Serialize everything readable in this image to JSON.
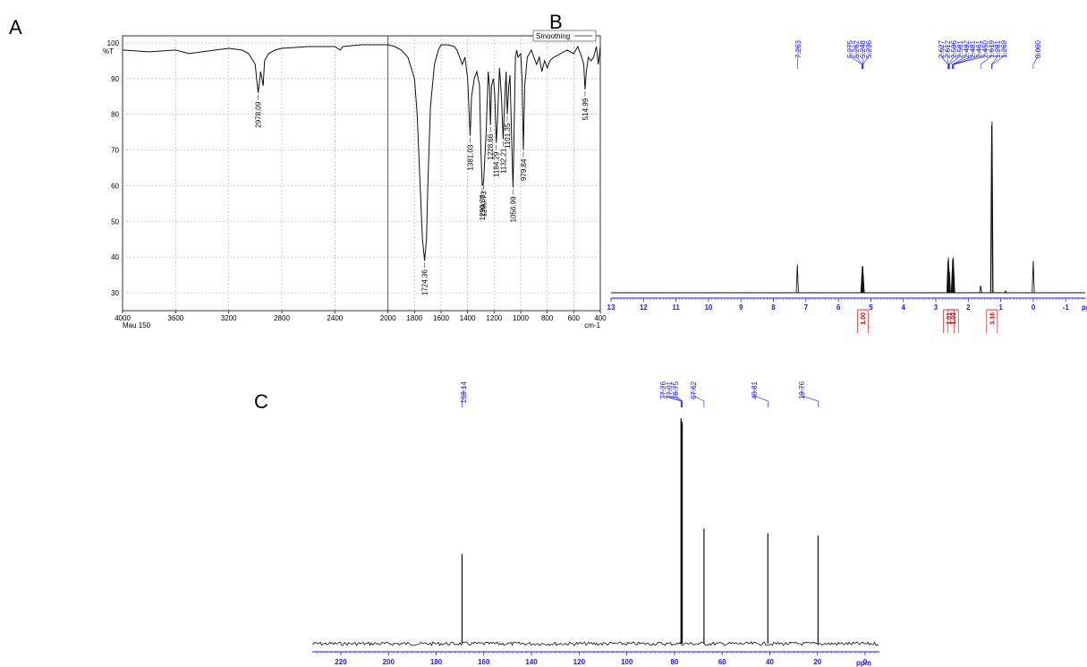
{
  "panels": {
    "a": "A",
    "b": "B",
    "c": "C"
  },
  "chart_data": [
    {
      "type": "line",
      "panel": "A",
      "ylabel": "%T",
      "xunit": "cm-1",
      "footer_note": "Mau 150",
      "legend_label": "Smoothing",
      "legend_position": "top-right",
      "grid": true,
      "x_reversed": true,
      "xlim": [
        4000,
        400
      ],
      "ylim": [
        25,
        102
      ],
      "xticks": [
        4000,
        3600,
        3200,
        2800,
        2400,
        2000,
        1800,
        1600,
        1400,
        1200,
        1000,
        800,
        600,
        400
      ],
      "yticks": [
        30,
        40,
        50,
        60,
        70,
        80,
        90,
        100
      ],
      "series": [
        {
          "values_x": [
            4000,
            3800,
            3600,
            3500,
            3400,
            3300,
            3200,
            3100,
            3050,
            3000,
            2990,
            2978,
            2960,
            2940,
            2930,
            2900,
            2850,
            2800,
            2600,
            2400,
            2360,
            2340,
            2200,
            2100,
            2000,
            1950,
            1900,
            1850,
            1800,
            1780,
            1760,
            1740,
            1724,
            1710,
            1700,
            1680,
            1650,
            1620,
            1600,
            1550,
            1500,
            1480,
            1460,
            1440,
            1430,
            1420,
            1400,
            1381,
            1370,
            1350,
            1330,
            1310,
            1300,
            1290,
            1280,
            1260,
            1245,
            1235,
            1228,
            1220,
            1205,
            1195,
            1184,
            1175,
            1160,
            1145,
            1132,
            1120,
            1110,
            1101,
            1090,
            1080,
            1070,
            1060,
            1057,
            1050,
            1040,
            1030,
            1020,
            1000,
            990,
            980,
            970,
            950,
            920,
            900,
            880,
            860,
            840,
            820,
            800,
            780,
            750,
            700,
            650,
            600,
            570,
            540,
            525,
            515,
            505,
            490,
            470,
            450,
            430,
            415,
            400
          ],
          "values_y": [
            98,
            97.5,
            98,
            97,
            97.5,
            98,
            98.5,
            98,
            97,
            94,
            90,
            86,
            92,
            88,
            95,
            97,
            98,
            98.5,
            99,
            99,
            98,
            99,
            99.5,
            99.5,
            99.5,
            99,
            98,
            96,
            90,
            80,
            62,
            45,
            39,
            45,
            60,
            82,
            94,
            98,
            99.5,
            99.5,
            99,
            98,
            96,
            94,
            95,
            96,
            90,
            74,
            85,
            90,
            92,
            88,
            70,
            60,
            61,
            75,
            92,
            88,
            77,
            88,
            90,
            85,
            72,
            78,
            93,
            85,
            73,
            84,
            92,
            80,
            88,
            91,
            76,
            62,
            59.5,
            75,
            96,
            98,
            96,
            97,
            90,
            70,
            88,
            96,
            98,
            96,
            94,
            96,
            92,
            95,
            93,
            95,
            96,
            97,
            98,
            97,
            99,
            96,
            94,
            87,
            92,
            96,
            95,
            96,
            99,
            94,
            99
          ]
        }
      ],
      "annotations": [
        {
          "label": "2978.09",
          "x": 2978,
          "y": 86
        },
        {
          "label": "1724.36",
          "x": 1724,
          "y": 39
        },
        {
          "label": "1381.03",
          "x": 1381,
          "y": 74
        },
        {
          "label": "1290.38",
          "x": 1290,
          "y": 60
        },
        {
          "label": "1280.73",
          "x": 1280,
          "y": 61
        },
        {
          "label": "1228.66",
          "x": 1228,
          "y": 77
        },
        {
          "label": "1184.29",
          "x": 1184,
          "y": 72
        },
        {
          "label": "1132.21",
          "x": 1132,
          "y": 73
        },
        {
          "label": "1101.35",
          "x": 1101,
          "y": 80
        },
        {
          "label": "1056.99",
          "x": 1057,
          "y": 59.5
        },
        {
          "label": "979.84",
          "x": 980,
          "y": 70
        },
        {
          "label": "514.99",
          "x": 515,
          "y": 87
        }
      ]
    },
    {
      "type": "line",
      "panel": "B",
      "xunit": "ppm",
      "x_reversed": true,
      "xlim": [
        13,
        -1.6
      ],
      "ylim": [
        0,
        1
      ],
      "xticks": [
        13,
        12,
        11,
        10,
        9,
        8,
        7,
        6,
        5,
        4,
        3,
        2,
        1,
        0,
        -1
      ],
      "peaks": [
        {
          "ppm": 7.263,
          "height": 0.16
        },
        {
          "ppm": 5.275,
          "height": 0.11
        },
        {
          "ppm": 5.262,
          "height": 0.15
        },
        {
          "ppm": 5.248,
          "height": 0.15
        },
        {
          "ppm": 5.236,
          "height": 0.1
        },
        {
          "ppm": 2.627,
          "height": 0.18
        },
        {
          "ppm": 2.612,
          "height": 0.2
        },
        {
          "ppm": 2.596,
          "height": 0.14
        },
        {
          "ppm": 2.581,
          "height": 0.12
        },
        {
          "ppm": 2.492,
          "height": 0.13
        },
        {
          "ppm": 2.481,
          "height": 0.19
        },
        {
          "ppm": 2.461,
          "height": 0.2
        },
        {
          "ppm": 2.45,
          "height": 0.14
        },
        {
          "ppm": 1.619,
          "height": 0.04
        },
        {
          "ppm": 1.281,
          "height": 0.95
        },
        {
          "ppm": 1.269,
          "height": 0.97
        },
        {
          "ppm": 0.85,
          "height": 0.01
        },
        {
          "ppm": 0.0,
          "height": 0.18
        }
      ],
      "peak_labels": [
        {
          "text": "7.263",
          "ppm": 7.263
        },
        {
          "text": "5.275",
          "ppm": 5.275
        },
        {
          "text": "5.262",
          "ppm": 5.262
        },
        {
          "text": "5.248",
          "ppm": 5.248
        },
        {
          "text": "5.236",
          "ppm": 5.236
        },
        {
          "text": "2.627",
          "ppm": 2.627
        },
        {
          "text": "2.612",
          "ppm": 2.612
        },
        {
          "text": "2.596",
          "ppm": 2.596
        },
        {
          "text": "2.581",
          "ppm": 2.581
        },
        {
          "text": "2.492",
          "ppm": 2.492
        },
        {
          "text": "2.481",
          "ppm": 2.481
        },
        {
          "text": "2.461",
          "ppm": 2.461
        },
        {
          "text": "2.450",
          "ppm": 2.45
        },
        {
          "text": "1.619",
          "ppm": 1.619
        },
        {
          "text": "1.281",
          "ppm": 1.281
        },
        {
          "text": "1.269",
          "ppm": 1.269
        },
        {
          "text": "0.000",
          "ppm": 0.0
        }
      ],
      "integrals": [
        {
          "value": "1.00",
          "ppm": 5.25
        },
        {
          "value": "1.01",
          "ppm": 2.6
        },
        {
          "value": "1.03",
          "ppm": 2.47
        },
        {
          "value": "3.16",
          "ppm": 1.27
        }
      ]
    },
    {
      "type": "line",
      "panel": "C",
      "xunit": "ppm",
      "x_reversed": true,
      "xlim": [
        232,
        -6
      ],
      "ylim": [
        0,
        1
      ],
      "xticks": [
        220,
        200,
        180,
        160,
        140,
        120,
        100,
        80,
        60,
        40,
        20,
        0
      ],
      "peaks": [
        {
          "ppm": 169.14,
          "height": 0.39
        },
        {
          "ppm": 77.26,
          "height": 0.98
        },
        {
          "ppm": 77.01,
          "height": 0.97
        },
        {
          "ppm": 76.75,
          "height": 0.96
        },
        {
          "ppm": 67.62,
          "height": 0.5
        },
        {
          "ppm": 40.81,
          "height": 0.48
        },
        {
          "ppm": 19.76,
          "height": 0.47
        }
      ],
      "peak_labels": [
        {
          "text": "169.14",
          "ppm": 169.14
        },
        {
          "text": "77.26",
          "ppm": 77.26
        },
        {
          "text": "77.01",
          "ppm": 77.01
        },
        {
          "text": "76.75",
          "ppm": 76.75
        },
        {
          "text": "67.62",
          "ppm": 67.62
        },
        {
          "text": "40.81",
          "ppm": 40.81
        },
        {
          "text": "19.76",
          "ppm": 19.76
        }
      ]
    }
  ]
}
